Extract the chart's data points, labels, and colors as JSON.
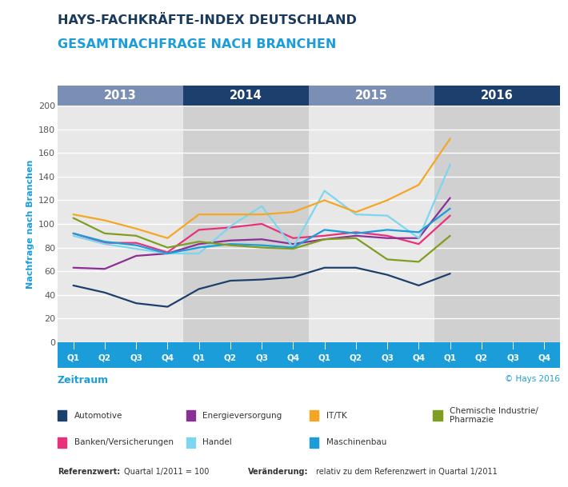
{
  "title1": "HAYS-FACHKRÄFTE-INDEX DEUTSCHLAND",
  "title2": "GESAMTNACHFRAGE NACH BRANCHEN",
  "title1_color": "#1a3a5c",
  "title2_color": "#1b9dd9",
  "ylabel": "Nachfrage nach Branchen",
  "xlabel": "Zeitraum",
  "copyright": "© Hays 2016",
  "ref_bold": "Referenzwert:",
  "ref_normal": "Quartal 1/2011 = 100",
  "change_bold": "Veränderung:",
  "change_normal": "relativ zu dem Referenzwert in Quartal 1/2011",
  "years": [
    "2013",
    "2014",
    "2015",
    "2016"
  ],
  "quarters": [
    "Q1",
    "Q2",
    "Q3",
    "Q4",
    "Q1",
    "Q2",
    "Q3",
    "Q4",
    "Q1",
    "Q2",
    "Q3",
    "Q4",
    "Q1",
    "Q2",
    "Q3",
    "Q4"
  ],
  "ylim": [
    0,
    200
  ],
  "yticks": [
    0,
    20,
    40,
    60,
    80,
    100,
    120,
    140,
    160,
    180,
    200
  ],
  "series": {
    "Automotive": {
      "color": "#1c3f6e",
      "values": [
        48,
        42,
        33,
        30,
        45,
        52,
        53,
        55,
        63,
        63,
        57,
        48,
        58,
        null,
        null,
        null
      ]
    },
    "Banken/Versicherungen": {
      "color": "#e8317a",
      "values": [
        92,
        84,
        84,
        76,
        95,
        97,
        100,
        88,
        90,
        93,
        90,
        83,
        107,
        null,
        null,
        null
      ]
    },
    "Energieversorgung": {
      "color": "#8b2f96",
      "values": [
        63,
        62,
        73,
        75,
        83,
        86,
        87,
        83,
        87,
        90,
        88,
        88,
        122,
        null,
        null,
        null
      ]
    },
    "Handel": {
      "color": "#7dd6f0",
      "values": [
        90,
        83,
        79,
        75,
        75,
        98,
        115,
        80,
        128,
        108,
        107,
        88,
        150,
        null,
        null,
        null
      ]
    },
    "IT/TK": {
      "color": "#f5a623",
      "values": [
        108,
        103,
        96,
        88,
        108,
        108,
        108,
        110,
        120,
        110,
        120,
        133,
        172,
        null,
        null,
        null
      ]
    },
    "Maschinenbau": {
      "color": "#1b9dd9",
      "values": [
        92,
        85,
        82,
        75,
        80,
        83,
        82,
        80,
        95,
        92,
        95,
        93,
        113,
        null,
        null,
        null
      ]
    },
    "Chemische Industrie/\nPharmazie": {
      "color": "#7f9e21",
      "values": [
        105,
        92,
        90,
        80,
        85,
        82,
        80,
        79,
        87,
        88,
        70,
        68,
        90,
        null,
        null,
        null
      ]
    }
  },
  "bg_light": "#e8e8e8",
  "bg_dark": "#d0d0d0",
  "year_color_light": "#7b8fb5",
  "year_color_dark": "#1c3f6e",
  "quarter_bar_color": "#1b9dd9",
  "legend_row1": [
    [
      "Automotive",
      "#1c3f6e"
    ],
    [
      "Energieversorgung",
      "#8b2f96"
    ],
    [
      "IT/TK",
      "#f5a623"
    ],
    [
      "Chemische Industrie/\nPharmazie",
      "#7f9e21"
    ]
  ],
  "legend_row2": [
    [
      "Banken/Versicherungen",
      "#e8317a"
    ],
    [
      "Handel",
      "#7dd6f0"
    ],
    [
      "Maschinenbau",
      "#1b9dd9"
    ]
  ]
}
